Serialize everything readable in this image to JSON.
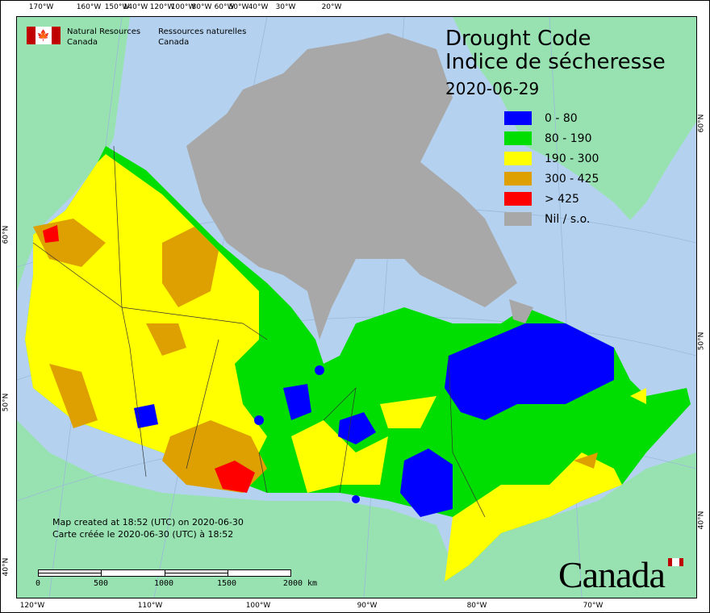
{
  "header": {
    "agency_en": [
      "Natural Resources",
      "Canada"
    ],
    "agency_fr": [
      "Ressources naturelles",
      "Canada"
    ],
    "title_en": "Drought Code",
    "title_fr": "Indice de sécheresse",
    "date": "2020-06-29"
  },
  "legend": [
    {
      "label": "0 - 80",
      "color": "#0000ff"
    },
    {
      "label": "80 - 190",
      "color": "#00dd00"
    },
    {
      "label": "190 - 300",
      "color": "#ffff00"
    },
    {
      "label": "300 - 425",
      "color": "#dda000"
    },
    {
      "label": "> 425",
      "color": "#ff0000"
    },
    {
      "label": "Nil / s.o.",
      "color": "#a8a8a8"
    }
  ],
  "axes": {
    "top": [
      "170°W",
      "160°W",
      "150°W",
      "140°W",
      "120°W",
      "100°W",
      "80°W",
      "60°W",
      "50°W",
      "40°W",
      "30°W",
      "20°W"
    ],
    "bottom": [
      "120°W",
      "110°W",
      "100°W",
      "90°W",
      "80°W",
      "70°W"
    ],
    "left": [
      "60°N",
      "50°N",
      "40°N"
    ],
    "right": [
      "60°N",
      "50°N",
      "40°N"
    ]
  },
  "footer": {
    "created_en": "Map created at 18:52 (UTC) on 2020-06-30",
    "created_fr": "Carte créée le 2020-06-30 (UTC) à 18:52",
    "scale_labels": [
      "0",
      "500",
      "1000",
      "1500",
      "2000  km"
    ],
    "wordmark": "Canada"
  },
  "colors": {
    "ocean": "#b4d2f0",
    "other_land": "#98e2b2"
  }
}
